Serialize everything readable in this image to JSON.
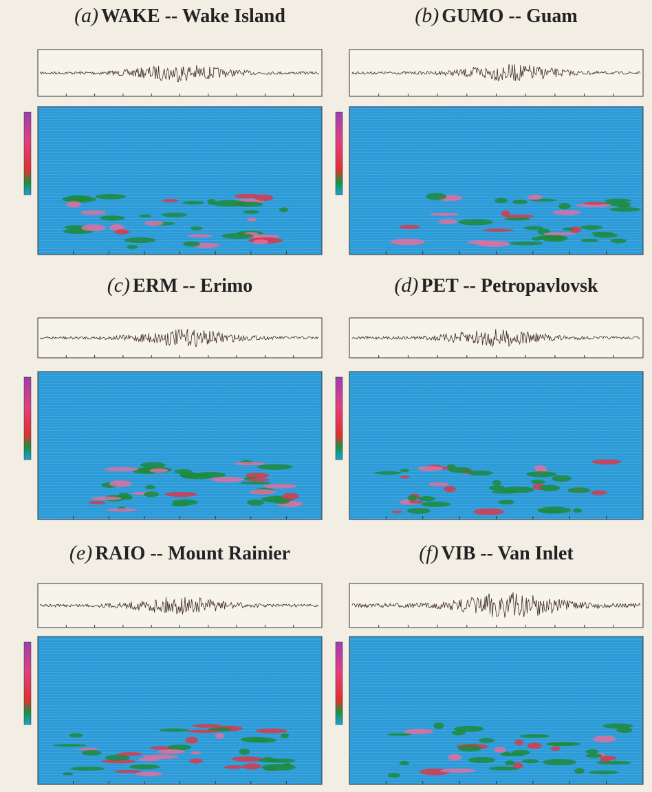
{
  "panels": [
    {
      "label": "(a)",
      "title": "WAKE -- Wake Island"
    },
    {
      "label": "(b)",
      "title": "GUMO -- Guam"
    },
    {
      "label": "(c)",
      "title": "ERM -- Erimo"
    },
    {
      "label": "(d)",
      "title": "PET -- Petropavlovsk"
    },
    {
      "label": "(e)",
      "title": "RAIO -- Mount Rainier"
    },
    {
      "label": "(f)",
      "title": "VIB -- Van Inlet"
    }
  ]
}
